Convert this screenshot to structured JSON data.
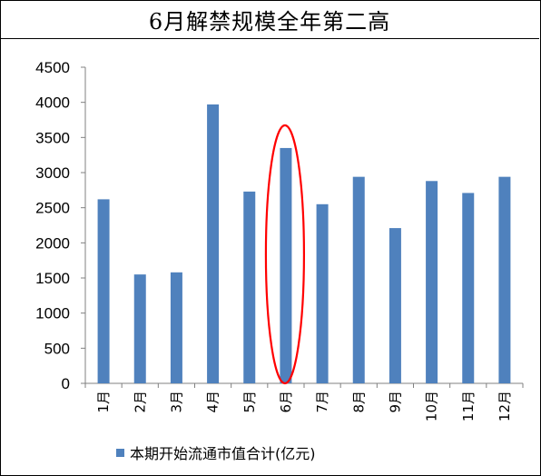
{
  "title": "6月解禁规模全年第二高",
  "chart_data": {
    "type": "bar",
    "categories": [
      "1月",
      "2月",
      "3月",
      "4月",
      "5月",
      "6月",
      "7月",
      "8月",
      "9月",
      "10月",
      "11月",
      "12月"
    ],
    "series": [
      {
        "name": "本期开始流通市值合计(亿元)",
        "values": [
          2620,
          1550,
          1580,
          3970,
          2730,
          3350,
          2550,
          2940,
          2210,
          2880,
          2710,
          2940
        ],
        "color": "#4f81bd"
      }
    ],
    "ylim": [
      0,
      4500
    ],
    "yticks": [
      "0",
      "500",
      "1000",
      "1500",
      "2000",
      "2500",
      "3000",
      "3500",
      "4000",
      "4500"
    ],
    "grid": false,
    "legend_position": "bottom",
    "highlight": {
      "category": "6月",
      "shape": "ellipse",
      "color": "#ff0000"
    }
  }
}
